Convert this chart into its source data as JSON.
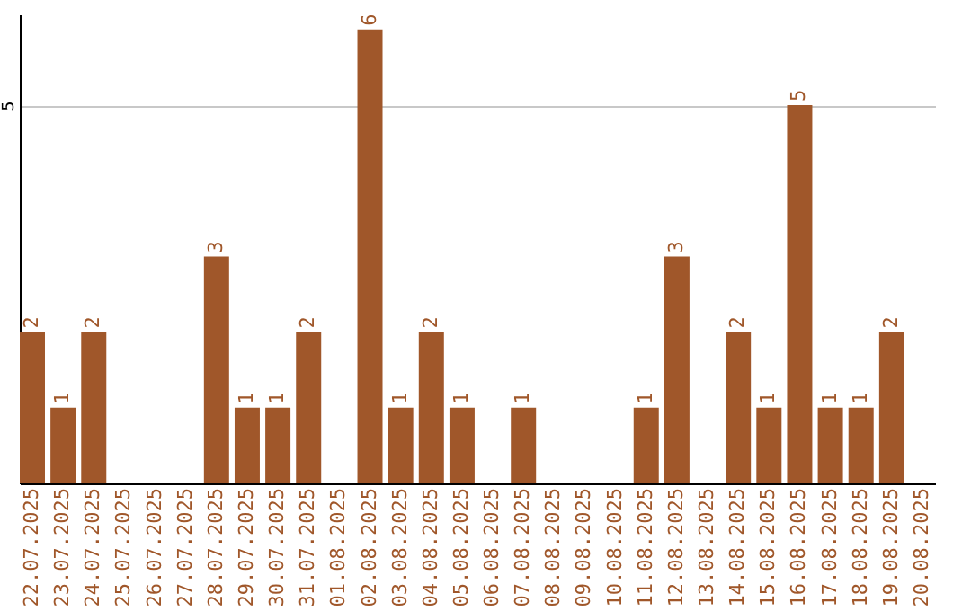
{
  "chart_data": {
    "type": "bar",
    "categories": [
      "22.07.2025",
      "23.07.2025",
      "24.07.2025",
      "25.07.2025",
      "26.07.2025",
      "27.07.2025",
      "28.07.2025",
      "29.07.2025",
      "30.07.2025",
      "31.07.2025",
      "01.08.2025",
      "02.08.2025",
      "03.08.2025",
      "04.08.2025",
      "05.08.2025",
      "06.08.2025",
      "07.08.2025",
      "08.08.2025",
      "09.08.2025",
      "10.08.2025",
      "11.08.2025",
      "12.08.2025",
      "13.08.2025",
      "14.08.2025",
      "15.08.2025",
      "16.08.2025",
      "17.08.2025",
      "18.08.2025",
      "19.08.2025",
      "20.08.2025"
    ],
    "values": [
      2,
      1,
      2,
      null,
      null,
      null,
      3,
      1,
      1,
      2,
      null,
      6,
      1,
      2,
      1,
      null,
      1,
      null,
      null,
      null,
      1,
      3,
      null,
      2,
      1,
      5,
      1,
      1,
      2,
      null
    ],
    "color": "#a0572a",
    "ylim": [
      0,
      6.2
    ],
    "yticks": [
      {
        "value": 0,
        "label": null
      },
      5
    ],
    "grid": "y",
    "data_labels": true
  }
}
